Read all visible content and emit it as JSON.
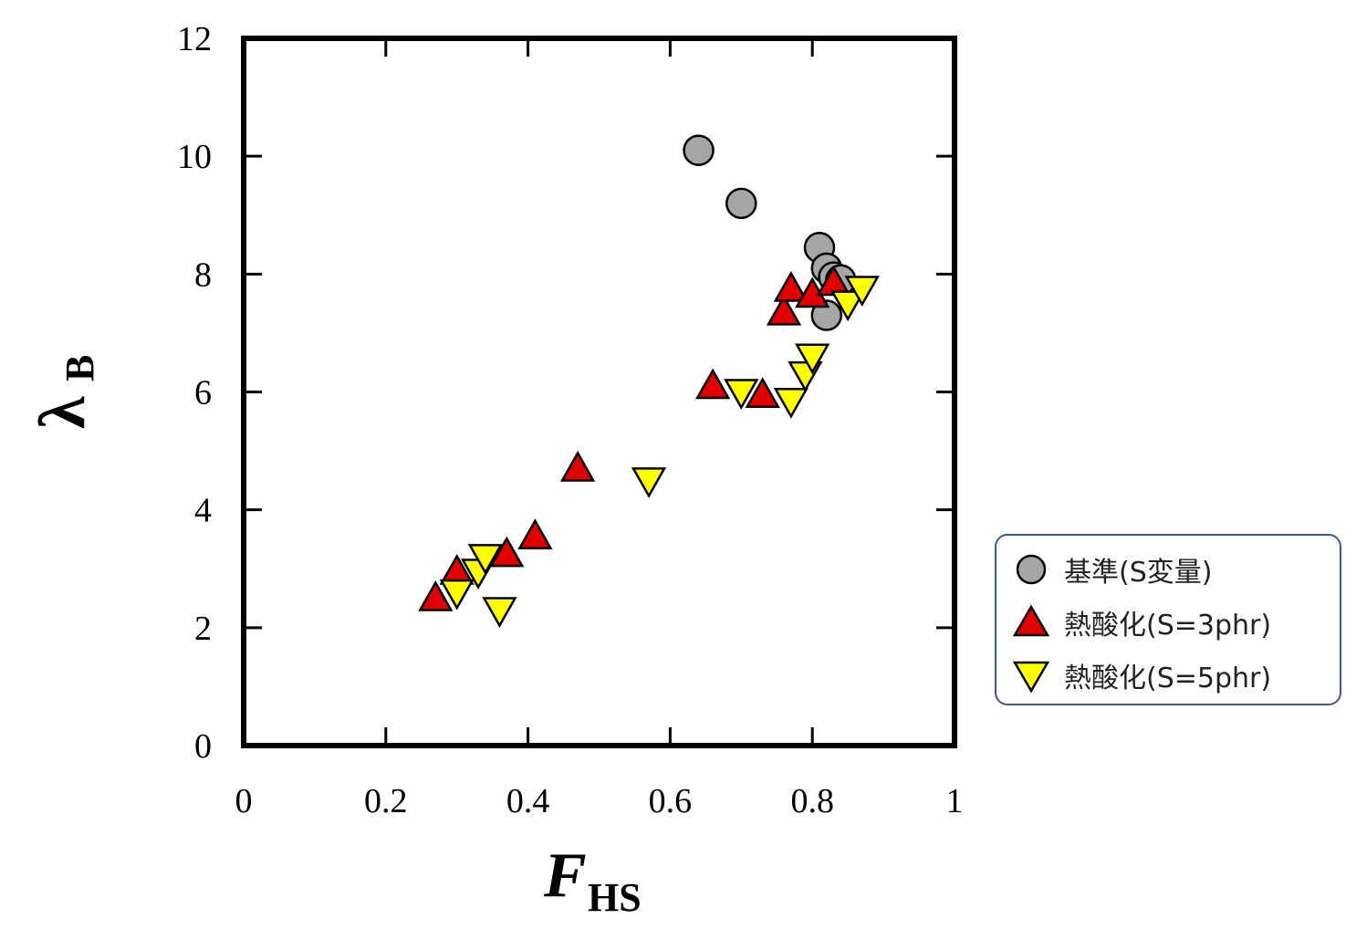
{
  "chart_data": {
    "type": "scatter",
    "xlabel": "F",
    "xlabel_sub": "HS",
    "ylabel": "λ",
    "ylabel_sub": "B",
    "xlim": [
      0,
      1
    ],
    "ylim": [
      0,
      12
    ],
    "x_ticks": [
      "0",
      "0.2",
      "0.4",
      "0.6",
      "0.8",
      "1"
    ],
    "y_ticks": [
      "0",
      "2",
      "4",
      "6",
      "8",
      "10",
      "12"
    ],
    "legend_position": "right",
    "series": [
      {
        "name": "基準(S変量)",
        "marker": "circle",
        "color": "#a6a6a6",
        "points": [
          [
            0.64,
            10.1
          ],
          [
            0.7,
            9.2
          ],
          [
            0.81,
            8.45
          ],
          [
            0.82,
            8.1
          ],
          [
            0.83,
            7.95
          ],
          [
            0.84,
            7.9
          ],
          [
            0.82,
            7.3
          ]
        ]
      },
      {
        "name": "熱酸化(S=3phr)",
        "marker": "triangle-up",
        "color": "#e00000",
        "points": [
          [
            0.27,
            2.5
          ],
          [
            0.3,
            2.95
          ],
          [
            0.37,
            3.25
          ],
          [
            0.41,
            3.55
          ],
          [
            0.47,
            4.7
          ],
          [
            0.66,
            6.1
          ],
          [
            0.73,
            5.95
          ],
          [
            0.76,
            7.35
          ],
          [
            0.77,
            7.75
          ],
          [
            0.8,
            7.65
          ],
          [
            0.83,
            7.85
          ]
        ]
      },
      {
        "name": "熱酸化(S=5phr)",
        "marker": "triangle-down",
        "color": "#ffff00",
        "points": [
          [
            0.3,
            2.6
          ],
          [
            0.33,
            2.95
          ],
          [
            0.34,
            3.2
          ],
          [
            0.36,
            2.3
          ],
          [
            0.57,
            4.5
          ],
          [
            0.7,
            6.0
          ],
          [
            0.77,
            5.85
          ],
          [
            0.79,
            6.3
          ],
          [
            0.8,
            6.6
          ],
          [
            0.85,
            7.5
          ],
          [
            0.87,
            7.75
          ]
        ]
      }
    ]
  }
}
